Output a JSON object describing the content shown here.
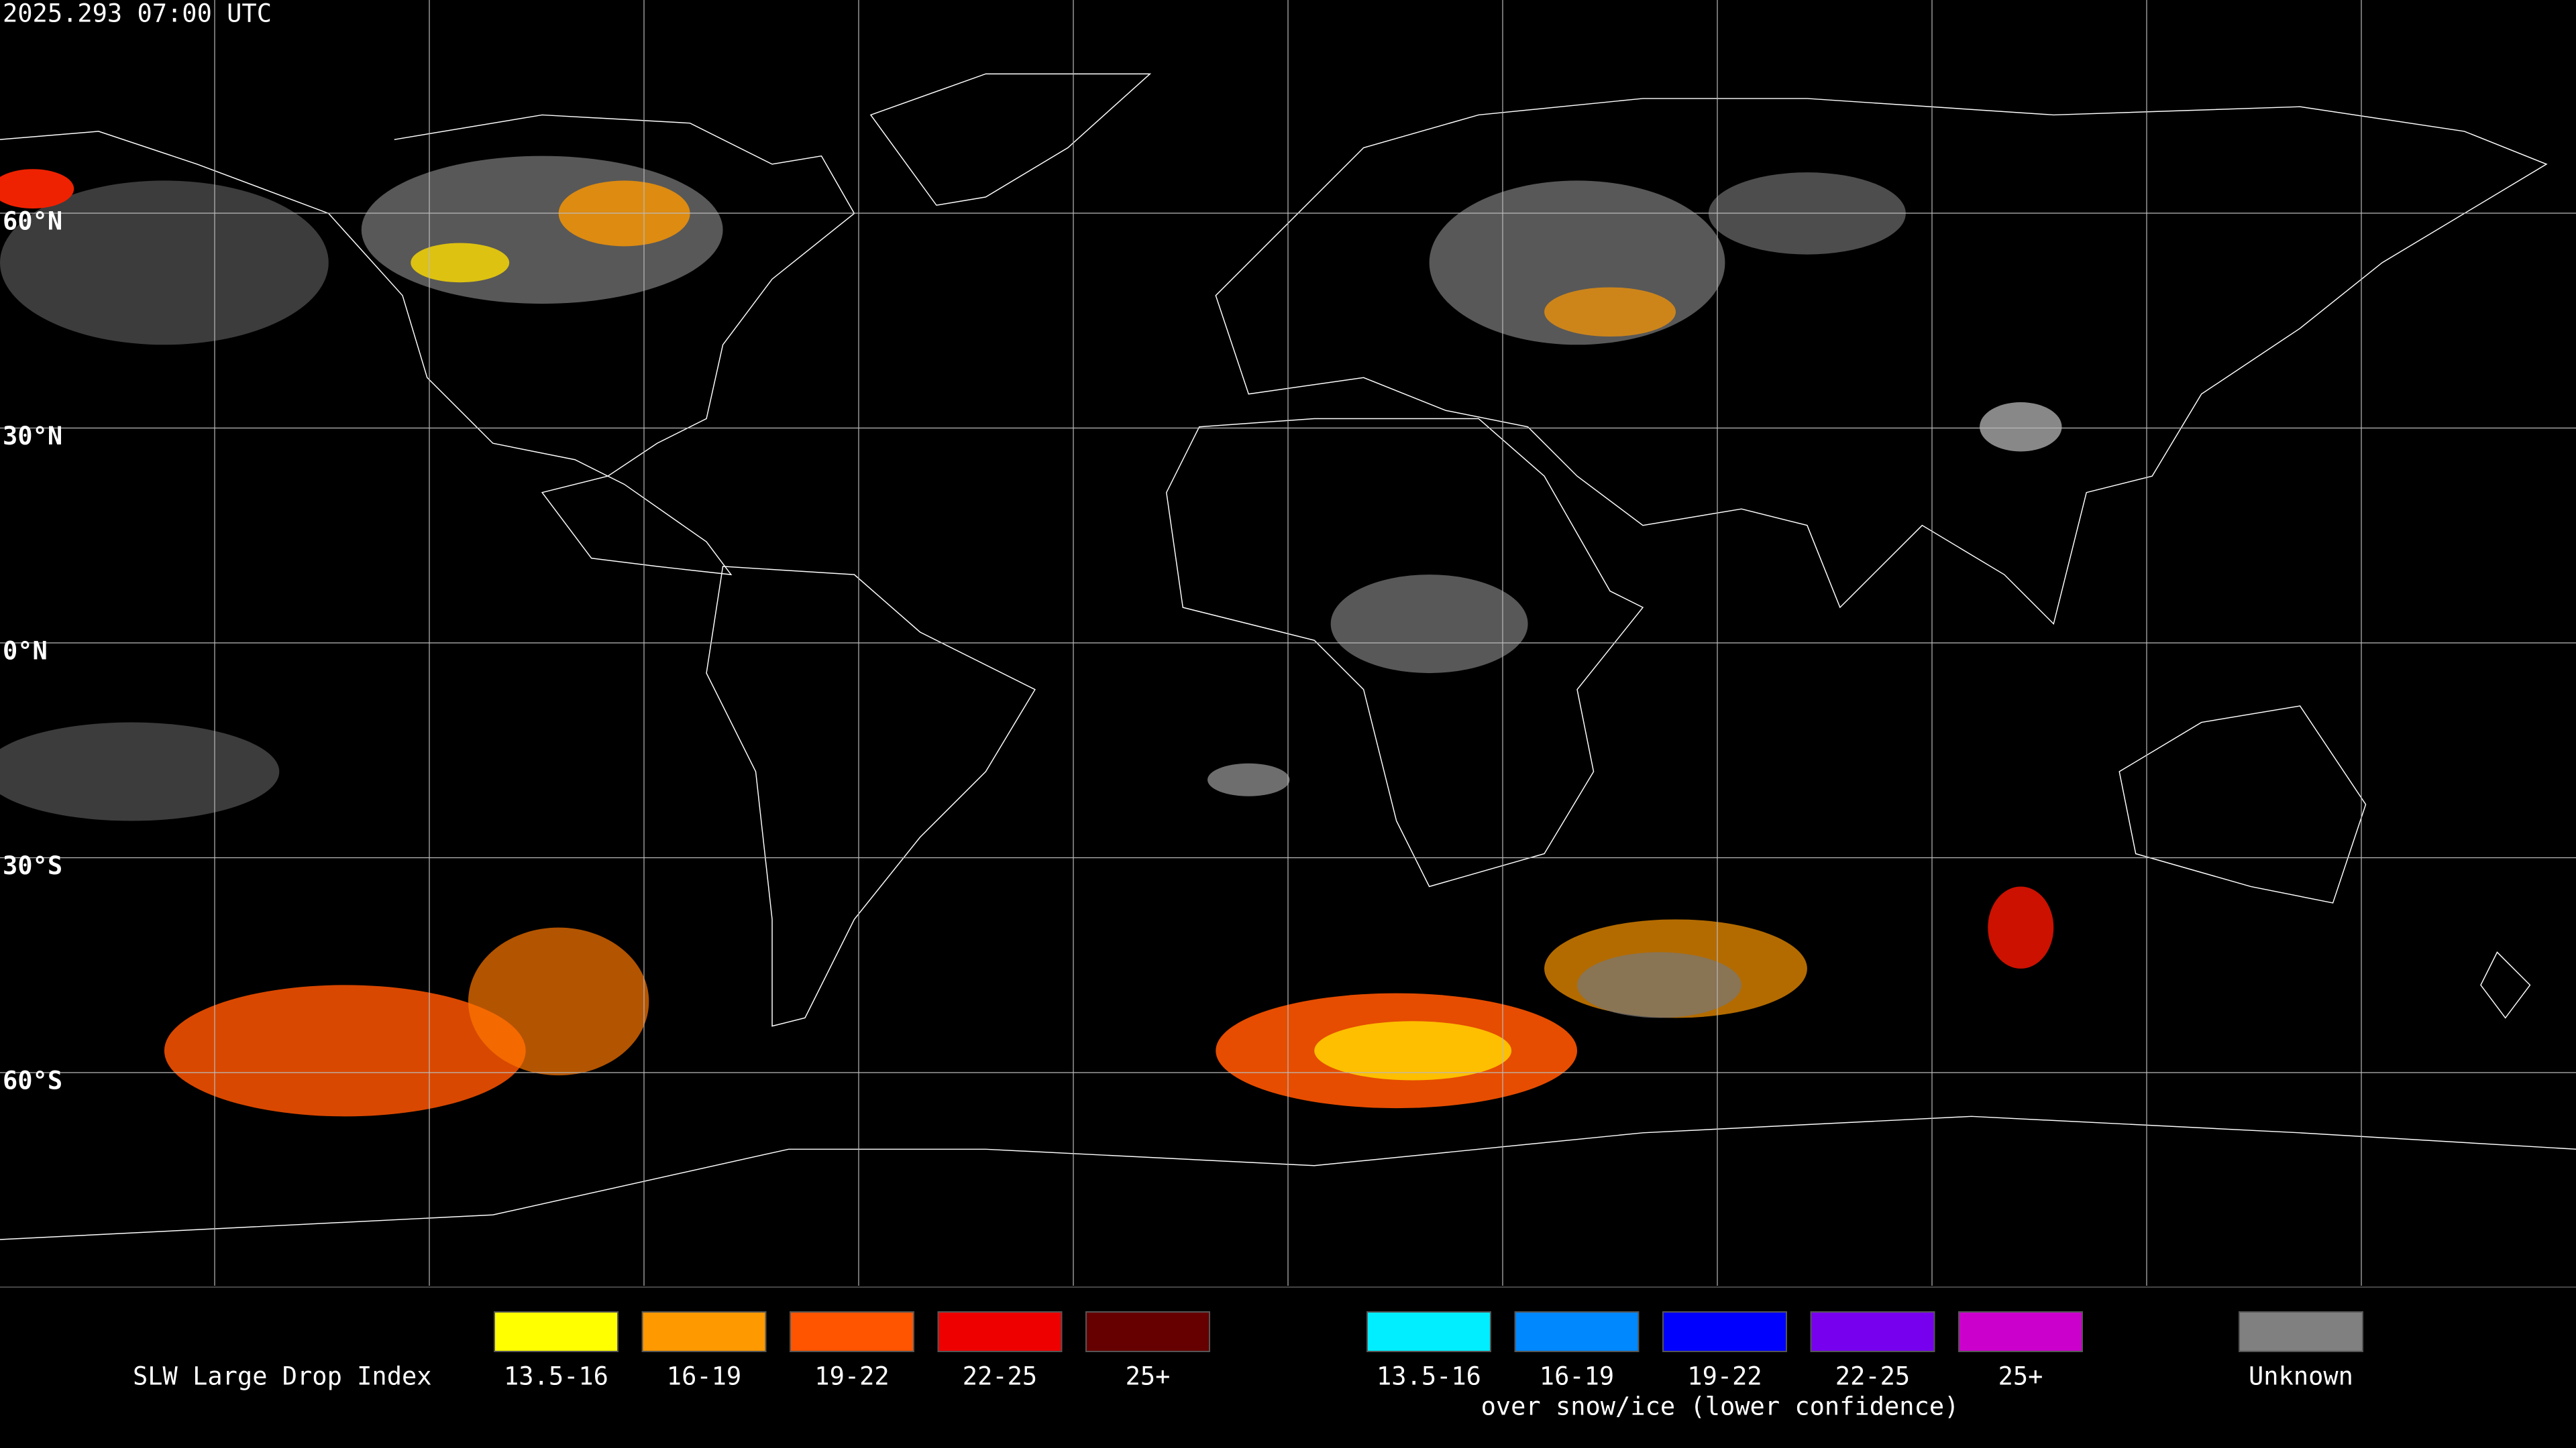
{
  "header": {
    "timestamp": "2025.293 07:00 UTC"
  },
  "map": {
    "lat_labels": [
      "60°N",
      "30°N",
      "0°N",
      "30°S",
      "60°S"
    ]
  },
  "legend": {
    "title": "SLW Large Drop Index",
    "groups": [
      {
        "items": [
          {
            "label": "13.5-16",
            "color": "#ffff00"
          },
          {
            "label": "16-19",
            "color": "#ff9900"
          },
          {
            "label": "19-22",
            "color": "#ff5500"
          },
          {
            "label": "22-25",
            "color": "#ee0000"
          },
          {
            "label": "25+",
            "color": "#660000"
          }
        ]
      },
      {
        "note": "over snow/ice (lower confidence)",
        "items": [
          {
            "label": "13.5-16",
            "color": "#00eeff"
          },
          {
            "label": "16-19",
            "color": "#0088ff"
          },
          {
            "label": "19-22",
            "color": "#0000ff"
          },
          {
            "label": "22-25",
            "color": "#7700ee"
          },
          {
            "label": "25+",
            "color": "#cc00cc"
          }
        ]
      }
    ],
    "unknown": {
      "label": "Unknown",
      "color": "#808080"
    }
  }
}
